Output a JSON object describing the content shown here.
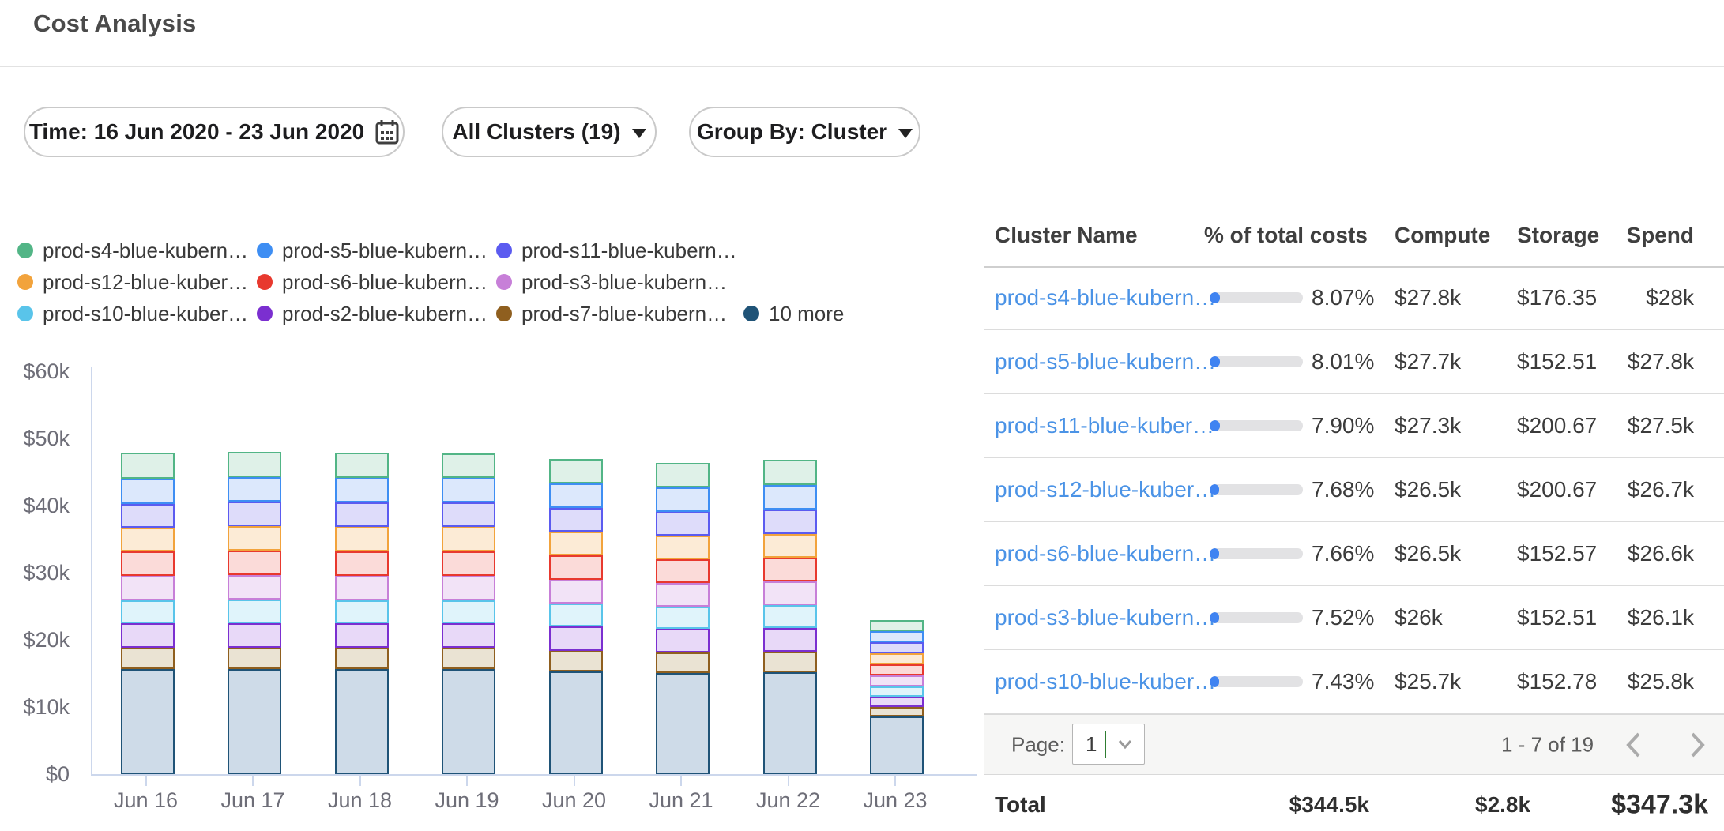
{
  "header": {
    "title": "Cost Analysis"
  },
  "filters": {
    "time_label": "Time: 16 Jun 2020 - 23 Jun 2020",
    "clusters_label": "All Clusters (19)",
    "group_by_label": "Group By: Cluster"
  },
  "chart_data": {
    "type": "bar",
    "stacked": true,
    "title": "",
    "unit": "USD per day",
    "categories": [
      "Jun 16",
      "Jun 17",
      "Jun 18",
      "Jun 19",
      "Jun 20",
      "Jun 21",
      "Jun 22",
      "Jun 23"
    ],
    "y_ticks": [
      "$0",
      "$10k",
      "$20k",
      "$30k",
      "$40k",
      "$50k",
      "$60k"
    ],
    "ylim_k": [
      0,
      60
    ],
    "grid": false,
    "legend_position": "top-left",
    "axis_color": "#ccd7ec",
    "series_bottom_to_top": [
      {
        "name": "10 more",
        "color": "#1F5377",
        "fill": "#CEDBE8",
        "values_k": [
          15.7,
          15.7,
          15.6,
          15.6,
          15.3,
          15.1,
          15.2,
          8.6
        ]
      },
      {
        "name": "prod-s7-blue-kubern…",
        "color": "#8F5F1F",
        "fill": "#EAE3D3",
        "values_k": [
          3.2,
          3.2,
          3.2,
          3.2,
          3.1,
          3.1,
          3.1,
          1.4
        ]
      },
      {
        "name": "prod-s2-blue-kubern…",
        "color": "#7B2FD0",
        "fill": "#E8D9F8",
        "values_k": [
          3.6,
          3.6,
          3.6,
          3.6,
          3.6,
          3.5,
          3.5,
          1.5
        ]
      },
      {
        "name": "prod-s10-blue-kuber…",
        "color": "#59C4EA",
        "fill": "#E0F4FB",
        "values_k": [
          3.4,
          3.5,
          3.4,
          3.4,
          3.4,
          3.3,
          3.4,
          1.5
        ]
      },
      {
        "name": "prod-s3-blue-kubern…",
        "color": "#C77FD8",
        "fill": "#F2E3F7",
        "values_k": [
          3.6,
          3.6,
          3.6,
          3.6,
          3.5,
          3.5,
          3.5,
          1.6
        ]
      },
      {
        "name": "prod-s6-blue-kubern…",
        "color": "#E8392E",
        "fill": "#FBDBD9",
        "values_k": [
          3.7,
          3.7,
          3.7,
          3.6,
          3.6,
          3.5,
          3.5,
          1.6
        ]
      },
      {
        "name": "prod-s12-blue-kuber…",
        "color": "#F2A33C",
        "fill": "#FCEBD6",
        "values_k": [
          3.5,
          3.6,
          3.6,
          3.6,
          3.5,
          3.5,
          3.5,
          1.6
        ]
      },
      {
        "name": "prod-s11-blue-kubern…",
        "color": "#5B5BF0",
        "fill": "#DEDCFA",
        "values_k": [
          3.5,
          3.6,
          3.6,
          3.6,
          3.5,
          3.5,
          3.6,
          1.6
        ]
      },
      {
        "name": "prod-s5-blue-kubern…",
        "color": "#3E8EF3",
        "fill": "#DCE8FC",
        "values_k": [
          3.8,
          3.7,
          3.7,
          3.7,
          3.6,
          3.6,
          3.6,
          1.7
        ]
      },
      {
        "name": "prod-s4-blue-kubern…",
        "color": "#52B586",
        "fill": "#DFF1E8",
        "values_k": [
          3.9,
          3.8,
          3.8,
          3.7,
          3.7,
          3.6,
          3.8,
          1.7
        ]
      }
    ],
    "legend": [
      {
        "label": "prod-s4-blue-kubern…",
        "color": "#52B586"
      },
      {
        "label": "prod-s5-blue-kubern…",
        "color": "#3E8EF3"
      },
      {
        "label": "prod-s11-blue-kubern…",
        "color": "#5B5BF0"
      },
      {
        "label": "prod-s12-blue-kuber…",
        "color": "#F2A33C"
      },
      {
        "label": "prod-s6-blue-kubern…",
        "color": "#E8392E"
      },
      {
        "label": "prod-s3-blue-kubern…",
        "color": "#C77FD8"
      },
      {
        "label": "prod-s10-blue-kuber…",
        "color": "#59C4EA"
      },
      {
        "label": "prod-s2-blue-kubern…",
        "color": "#7B2FD0"
      },
      {
        "label": "prod-s7-blue-kubern…",
        "color": "#8F5F1F"
      },
      {
        "label": "10 more",
        "color": "#1F5377"
      }
    ]
  },
  "table": {
    "headers": [
      "Cluster Name",
      "% of total costs",
      "Compute",
      "Storage",
      "Spend"
    ],
    "rows": [
      {
        "name": "prod-s4-blue-kubern…",
        "pct": 8.07,
        "pct_display": "8.07%",
        "compute": "$27.8k",
        "storage": "$176.35",
        "spend": "$28k"
      },
      {
        "name": "prod-s5-blue-kubern…",
        "pct": 8.01,
        "pct_display": "8.01%",
        "compute": "$27.7k",
        "storage": "$152.51",
        "spend": "$27.8k"
      },
      {
        "name": "prod-s11-blue-kuber…",
        "pct": 7.9,
        "pct_display": "7.90%",
        "compute": "$27.3k",
        "storage": "$200.67",
        "spend": "$27.5k"
      },
      {
        "name": "prod-s12-blue-kuber…",
        "pct": 7.68,
        "pct_display": "7.68%",
        "compute": "$26.5k",
        "storage": "$200.67",
        "spend": "$26.7k"
      },
      {
        "name": "prod-s6-blue-kubern…",
        "pct": 7.66,
        "pct_display": "7.66%",
        "compute": "$26.5k",
        "storage": "$152.57",
        "spend": "$26.6k"
      },
      {
        "name": "prod-s3-blue-kubern…",
        "pct": 7.52,
        "pct_display": "7.52%",
        "compute": "$26k",
        "storage": "$152.51",
        "spend": "$26.1k"
      },
      {
        "name": "prod-s10-blue-kuber…",
        "pct": 7.43,
        "pct_display": "7.43%",
        "compute": "$25.7k",
        "storage": "$152.78",
        "spend": "$25.8k"
      }
    ],
    "total": {
      "label": "Total",
      "compute": "$344.5k",
      "storage": "$2.8k",
      "spend": "$347.3k"
    }
  },
  "pagination": {
    "page_label": "Page:",
    "page_value": "1",
    "range_text": "1 - 7 of 19"
  }
}
